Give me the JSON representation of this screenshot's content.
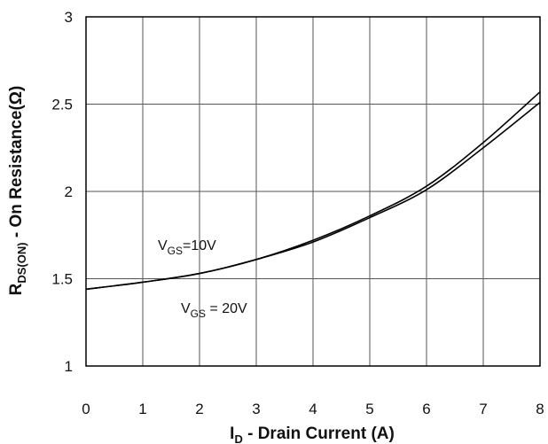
{
  "chart_data": {
    "type": "line",
    "xlabel": {
      "main": "I",
      "sub": "D",
      "rest": " - Drain Current (A)"
    },
    "ylabel": {
      "main": "R",
      "sub": "DS(ON)",
      "rest": " - On Resistance(Ω)"
    },
    "xlim": [
      0,
      8
    ],
    "ylim": [
      1,
      3
    ],
    "x_ticks": [
      "0",
      "1",
      "2",
      "3",
      "4",
      "5",
      "6",
      "7",
      "8"
    ],
    "y_ticks": [
      "1",
      "1.5",
      "2",
      "2.5",
      "3"
    ],
    "grid": true,
    "series": [
      {
        "name": "VGS=10V",
        "x": [
          0,
          1,
          2,
          3,
          4,
          5,
          6,
          7,
          8
        ],
        "y": [
          1.44,
          1.48,
          1.53,
          1.61,
          1.72,
          1.86,
          2.03,
          2.28,
          2.57
        ]
      },
      {
        "name": "VGS = 20V",
        "x": [
          0,
          1,
          2,
          3,
          4,
          5,
          6,
          7,
          8
        ],
        "y": [
          1.44,
          1.48,
          1.53,
          1.61,
          1.71,
          1.85,
          2.01,
          2.25,
          2.51
        ]
      }
    ],
    "annotations": [
      {
        "main": "V",
        "sub": "GS",
        "rest": "=10V"
      },
      {
        "main": "V",
        "sub": "GS",
        "rest": " = 20V"
      }
    ]
  }
}
